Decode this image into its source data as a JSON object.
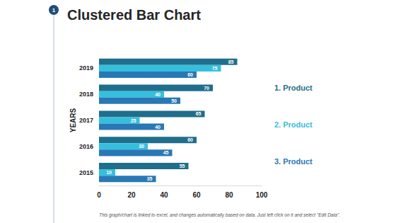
{
  "chart_data": {
    "type": "bar",
    "title": "Clustered Bar Chart",
    "orientation": "horizontal",
    "y_label": "YEARS",
    "categories": [
      "2019",
      "2018",
      "2017",
      "2016",
      "2015"
    ],
    "series": [
      {
        "name": "1. Product",
        "color": "#1f6e8c",
        "values": [
          85,
          70,
          65,
          60,
          55
        ]
      },
      {
        "name": "2. Product",
        "color": "#35bfdc",
        "values": [
          75,
          40,
          25,
          30,
          10
        ]
      },
      {
        "name": "3. Product",
        "color": "#2878b5",
        "values": [
          60,
          50,
          40,
          45,
          35
        ]
      }
    ],
    "xlim": [
      0,
      100
    ],
    "xticks": [
      0,
      20,
      40,
      60,
      80,
      100
    ],
    "grid": false,
    "data_labels": true,
    "legend": "right",
    "annotations": [
      "1",
      "This graph/chart is linked to excel, and changes automatically based on data. Just left click on it and select \"Edit Data\"."
    ]
  }
}
